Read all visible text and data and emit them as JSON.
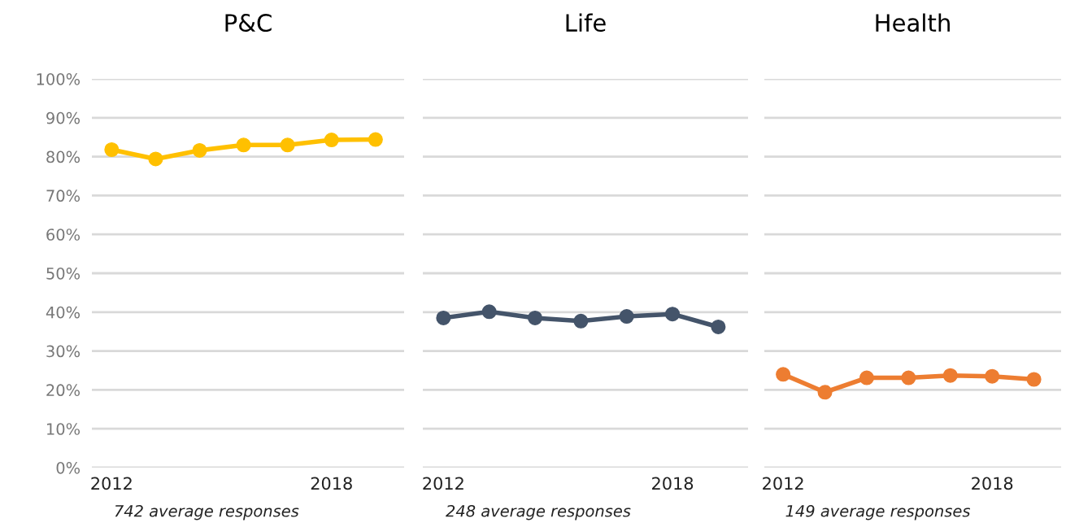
{
  "chart_data": [
    {
      "type": "line",
      "title": "P&C",
      "categories": [
        "2012",
        null,
        null,
        null,
        null,
        "2018",
        null
      ],
      "series": [
        {
          "color": "#ffc000",
          "values": [
            81.8,
            79.4,
            81.6,
            83.0,
            83.0,
            84.3,
            84.4
          ]
        }
      ],
      "ylim": [
        0,
        100
      ],
      "yticks": [
        {
          "value": 0,
          "label": "0%"
        },
        {
          "value": 10,
          "label": "10%"
        },
        {
          "value": 20,
          "label": "20%"
        },
        {
          "value": 30,
          "label": "30%"
        },
        {
          "value": 40,
          "label": "40%"
        },
        {
          "value": 50,
          "label": "50%"
        },
        {
          "value": 60,
          "label": "60%"
        },
        {
          "value": 70,
          "label": "70%"
        },
        {
          "value": 80,
          "label": "80%"
        },
        {
          "value": 90,
          "label": "90%"
        },
        {
          "value": 100,
          "label": "100%"
        }
      ],
      "grid": "y",
      "marker": "circle",
      "annotations": [
        "742 average responses"
      ]
    },
    {
      "type": "line",
      "title": "Life",
      "categories": [
        "2012",
        null,
        null,
        null,
        null,
        "2018",
        null
      ],
      "series": [
        {
          "color": "#44546a",
          "values": [
            38.5,
            40.1,
            38.5,
            37.7,
            38.9,
            39.5,
            36.2
          ]
        }
      ],
      "ylim": [
        0,
        100
      ],
      "yticks": [
        0,
        10,
        20,
        30,
        40,
        50,
        60,
        70,
        80,
        90,
        100
      ],
      "tick_labels": "x",
      "grid": "y",
      "marker": "circle",
      "annotations": [
        "248 average responses"
      ]
    },
    {
      "type": "line",
      "title": "Health",
      "categories": [
        "2012",
        null,
        null,
        null,
        null,
        "2018",
        null
      ],
      "series": [
        {
          "color": "#ed7d31",
          "values": [
            24.0,
            19.4,
            23.1,
            23.1,
            23.7,
            23.5,
            22.7
          ]
        }
      ],
      "ylim": [
        0,
        100
      ],
      "yticks": [
        0,
        10,
        20,
        30,
        40,
        50,
        60,
        70,
        80,
        90,
        100
      ],
      "tick_labels": "x",
      "grid": "y",
      "marker": "circle",
      "annotations": [
        "149 average responses"
      ]
    }
  ]
}
